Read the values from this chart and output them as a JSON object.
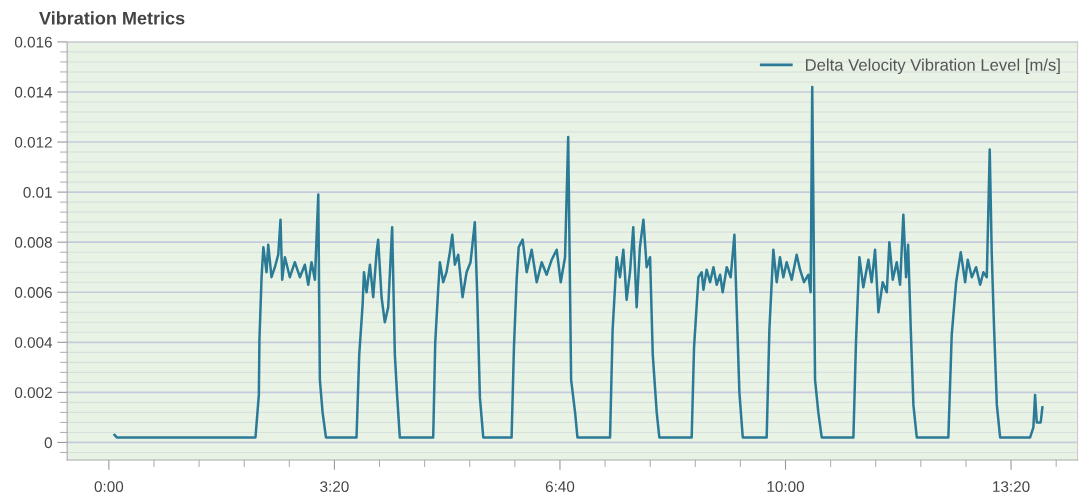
{
  "chart_data": {
    "type": "line",
    "title": "Vibration Metrics",
    "x": [
      5,
      7,
      20,
      40,
      60,
      80,
      100,
      120,
      130,
      133,
      133.5,
      135.4,
      137,
      139.8,
      141.3,
      144.2,
      147.2,
      150.2,
      152.2,
      153.7,
      156.1,
      160.5,
      164.9,
      169.4,
      173.8,
      176.8,
      179.7,
      182.7,
      185.7,
      187.1,
      189.5,
      192.5,
      205,
      219.6,
      222,
      225,
      226.2,
      228.5,
      231.5,
      234.4,
      237.4,
      238.8,
      241.8,
      244.7,
      247.7,
      251.2,
      253.6,
      255.7,
      258,
      270,
      287.6,
      289.4,
      292,
      293.5,
      296.5,
      299.4,
      302.4,
      304.5,
      306.8,
      309.8,
      313.6,
      317.2,
      320.7,
      324.5,
      326.7,
      329,
      332,
      345,
      357.1,
      359.2,
      361.6,
      363.4,
      366.9,
      370.5,
      374.9,
      379.4,
      383.8,
      388.2,
      392.7,
      397.1,
      400.7,
      404.5,
      407.3,
      409.9,
      413.4,
      415.5,
      430,
      444.4,
      446.7,
      450.3,
      453.2,
      456.2,
      459.1,
      462.1,
      465,
      468,
      470.9,
      474,
      476.9,
      479.9,
      482.3,
      485.8,
      488.1,
      500,
      516.8,
      518.9,
      522.8,
      525.7,
      527.2,
      530.1,
      533.1,
      536.1,
      539,
      542,
      544.3,
      547.9,
      551.4,
      554.7,
      556.7,
      559.1,
      562.1,
      570,
      583.3,
      585.7,
      589.2,
      592.2,
      595.1,
      598.1,
      601,
      605.5,
      609.9,
      612.9,
      616.4,
      620.3,
      622.3,
      623.7,
      626.2,
      629.1,
      632.1,
      645,
      660.2,
      662.5,
      665.5,
      669,
      673.5,
      676.4,
      679.4,
      682.4,
      686.2,
      689.8,
      692.1,
      695.1,
      698.6,
      701.6,
      704.5,
      706.9,
      708.7,
      711.1,
      713.4,
      716.4,
      730,
      744.4,
      747.4,
      751.3,
      755.4,
      759.3,
      761.6,
      765.2,
      769,
      772.6,
      775.5,
      778.5,
      781.1,
      782.9,
      785,
      787.4,
      790.3,
      805,
      816.9,
      819.8,
      821.3,
      822.8,
      826.3,
      827.8
    ],
    "series": [
      {
        "name": "Delta Velocity Vibration Level [m/s]",
        "color": "#2b7a96",
        "values": [
          0.0003,
          0.0002,
          0.0002,
          0.0002,
          0.0002,
          0.0002,
          0.0002,
          0.0002,
          0.0002,
          0.0019,
          0.0041,
          0.0066,
          0.0078,
          0.0068,
          0.0079,
          0.0066,
          0.007,
          0.0075,
          0.0089,
          0.0065,
          0.0074,
          0.0066,
          0.0072,
          0.0066,
          0.0071,
          0.0063,
          0.0072,
          0.0065,
          0.0099,
          0.0025,
          0.0012,
          0.0002,
          0.0002,
          0.0002,
          0.0035,
          0.0055,
          0.0068,
          0.006,
          0.0071,
          0.0058,
          0.0076,
          0.0081,
          0.0058,
          0.0048,
          0.0054,
          0.0086,
          0.0035,
          0.0018,
          0.0002,
          0.0002,
          0.0002,
          0.004,
          0.0061,
          0.0072,
          0.0064,
          0.0068,
          0.0076,
          0.0083,
          0.0071,
          0.0075,
          0.0058,
          0.0068,
          0.0072,
          0.0088,
          0.0058,
          0.0018,
          0.0002,
          0.0002,
          0.0002,
          0.0038,
          0.0065,
          0.0078,
          0.0081,
          0.0068,
          0.0077,
          0.0064,
          0.0072,
          0.0067,
          0.0073,
          0.0077,
          0.0064,
          0.0074,
          0.0122,
          0.0025,
          0.0012,
          0.0002,
          0.0002,
          0.0002,
          0.0045,
          0.0074,
          0.0066,
          0.0077,
          0.0057,
          0.0068,
          0.0086,
          0.0054,
          0.0078,
          0.0089,
          0.007,
          0.0074,
          0.0035,
          0.0012,
          0.0002,
          0.0002,
          0.0002,
          0.0038,
          0.0066,
          0.0068,
          0.0061,
          0.0069,
          0.0064,
          0.007,
          0.0063,
          0.0067,
          0.006,
          0.007,
          0.0066,
          0.0083,
          0.0054,
          0.002,
          0.0002,
          0.0002,
          0.0002,
          0.0045,
          0.0077,
          0.0064,
          0.0074,
          0.0066,
          0.0072,
          0.0065,
          0.0075,
          0.0069,
          0.0064,
          0.0067,
          0.006,
          0.0142,
          0.0025,
          0.0012,
          0.0002,
          0.0002,
          0.0002,
          0.004,
          0.0074,
          0.0062,
          0.0073,
          0.0064,
          0.0077,
          0.0052,
          0.0064,
          0.006,
          0.008,
          0.0065,
          0.0072,
          0.0063,
          0.0091,
          0.0066,
          0.0079,
          0.0045,
          0.0015,
          0.0002,
          0.0002,
          0.0002,
          0.0043,
          0.0064,
          0.0076,
          0.0064,
          0.0073,
          0.0066,
          0.007,
          0.0063,
          0.0068,
          0.0066,
          0.0117,
          0.0075,
          0.0045,
          0.0015,
          0.0002,
          0.0002,
          0.0002,
          0.0006,
          0.0019,
          0.0008,
          0.0008,
          0.0014
        ]
      }
    ],
    "xlim": [
      -37,
      859
    ],
    "xticks": [
      {
        "value": 0,
        "label": "0:00"
      },
      {
        "value": 40,
        "label": null
      },
      {
        "value": 80,
        "label": null
      },
      {
        "value": 120,
        "label": null
      },
      {
        "value": 160,
        "label": null
      },
      {
        "value": 200,
        "label": "3:20"
      },
      {
        "value": 240,
        "label": null
      },
      {
        "value": 280,
        "label": null
      },
      {
        "value": 320,
        "label": null
      },
      {
        "value": 360,
        "label": null
      },
      {
        "value": 400,
        "label": "6:40"
      },
      {
        "value": 440,
        "label": null
      },
      {
        "value": 480,
        "label": null
      },
      {
        "value": 520,
        "label": null
      },
      {
        "value": 560,
        "label": null
      },
      {
        "value": 600,
        "label": "10:00"
      },
      {
        "value": 640,
        "label": null
      },
      {
        "value": 680,
        "label": null
      },
      {
        "value": 720,
        "label": null
      },
      {
        "value": 760,
        "label": null
      },
      {
        "value": 800,
        "label": "13:20"
      },
      {
        "value": 840,
        "label": null
      }
    ],
    "ylim": [
      -0.0007,
      0.016
    ],
    "yticks": [
      {
        "value": -0.0004,
        "label": null
      },
      0,
      {
        "value": 0.0004,
        "label": null
      },
      {
        "value": 0.0008,
        "label": null
      },
      {
        "value": 0.0012,
        "label": null
      },
      {
        "value": 0.0016,
        "label": null
      },
      0.002,
      {
        "value": 0.0024,
        "label": null
      },
      {
        "value": 0.0028,
        "label": null
      },
      {
        "value": 0.0032,
        "label": null
      },
      {
        "value": 0.0036,
        "label": null
      },
      0.004,
      {
        "value": 0.0044,
        "label": null
      },
      {
        "value": 0.0048,
        "label": null
      },
      {
        "value": 0.0052,
        "label": null
      },
      {
        "value": 0.0056,
        "label": null
      },
      0.006,
      {
        "value": 0.0064,
        "label": null
      },
      {
        "value": 0.0068,
        "label": null
      },
      {
        "value": 0.0072,
        "label": null
      },
      {
        "value": 0.0076,
        "label": null
      },
      0.008,
      {
        "value": 0.0084,
        "label": null
      },
      {
        "value": 0.0088,
        "label": null
      },
      {
        "value": 0.0092,
        "label": null
      },
      {
        "value": 0.0096,
        "label": null
      },
      0.01,
      {
        "value": 0.0104,
        "label": null
      },
      {
        "value": 0.0108,
        "label": null
      },
      {
        "value": 0.0112,
        "label": null
      },
      {
        "value": 0.0116,
        "label": null
      },
      0.012,
      {
        "value": 0.0124,
        "label": null
      },
      {
        "value": 0.0128,
        "label": null
      },
      {
        "value": 0.0132,
        "label": null
      },
      {
        "value": 0.0136,
        "label": null
      },
      0.014,
      {
        "value": 0.0144,
        "label": null
      },
      {
        "value": 0.0148,
        "label": null
      },
      {
        "value": 0.0152,
        "label": null
      },
      {
        "value": 0.0156,
        "label": null
      },
      0.016
    ],
    "grid": "y",
    "legend": "top right"
  }
}
